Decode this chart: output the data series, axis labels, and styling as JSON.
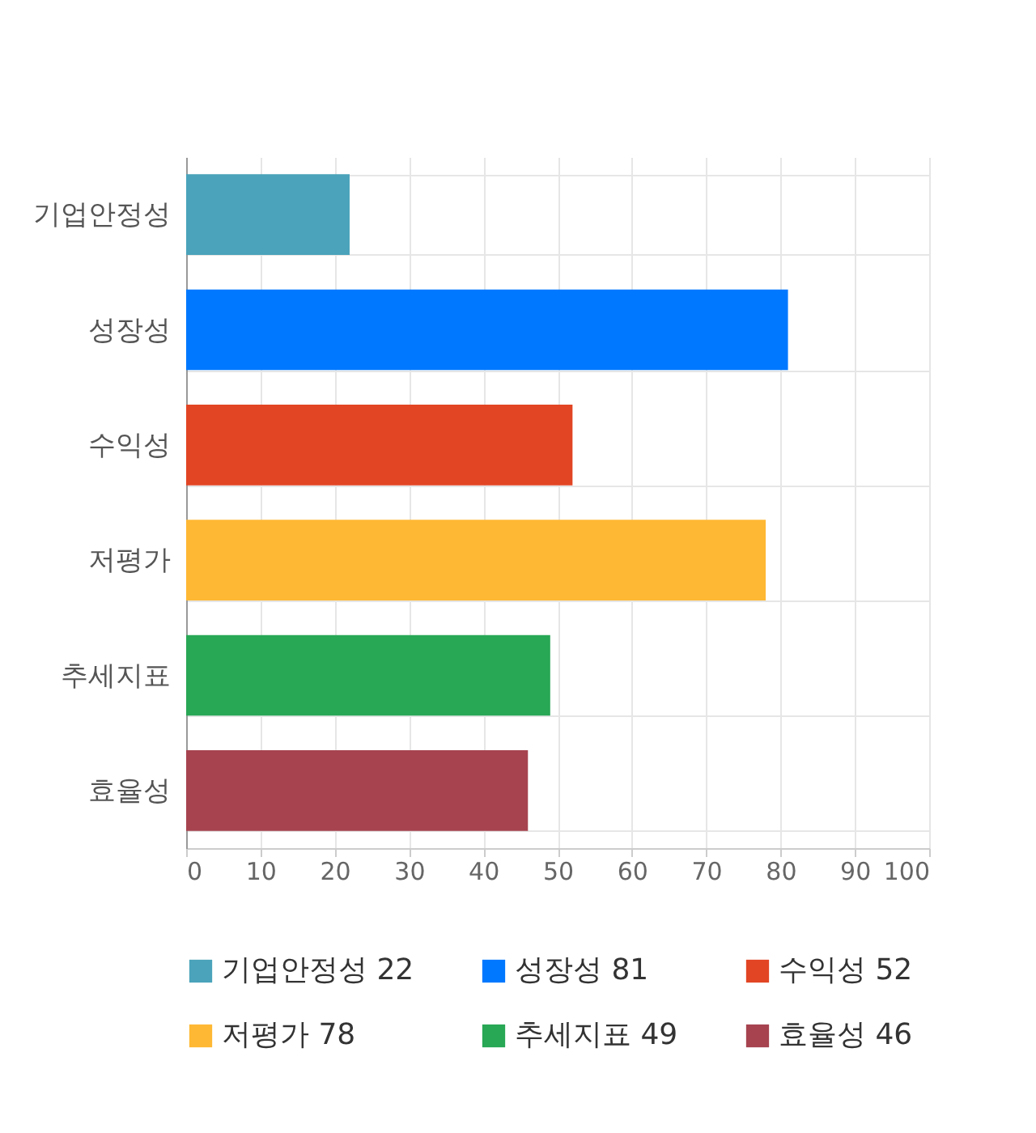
{
  "chart_data": {
    "type": "bar",
    "orientation": "horizontal",
    "stacked": true,
    "categories": [
      "기업안정성",
      "성장성",
      "수익성",
      "저평가",
      "추세지표",
      "효율성"
    ],
    "series": [
      {
        "name": "기업안정성 22",
        "color": "#4aa3ba",
        "values": [
          22,
          null,
          null,
          null,
          null,
          null
        ]
      },
      {
        "name": "성장성 81",
        "color": "#0078ff",
        "values": [
          null,
          81,
          null,
          null,
          null,
          null
        ]
      },
      {
        "name": "수익성 52",
        "color": "#e24524",
        "values": [
          null,
          null,
          52,
          null,
          null,
          null
        ]
      },
      {
        "name": "저평가 78",
        "color": "#ffb833",
        "values": [
          null,
          null,
          null,
          78,
          null,
          null
        ]
      },
      {
        "name": "추세지표 49",
        "color": "#28a755",
        "values": [
          null,
          null,
          null,
          null,
          49,
          null
        ]
      },
      {
        "name": "효율성 46",
        "color": "#a6434f",
        "values": [
          null,
          null,
          null,
          null,
          null,
          46
        ]
      }
    ],
    "xlim": [
      0,
      100
    ],
    "xticks": [
      0,
      10,
      20,
      30,
      40,
      50,
      60,
      70,
      80,
      90,
      100
    ],
    "grid": true,
    "legend": "bottom"
  }
}
